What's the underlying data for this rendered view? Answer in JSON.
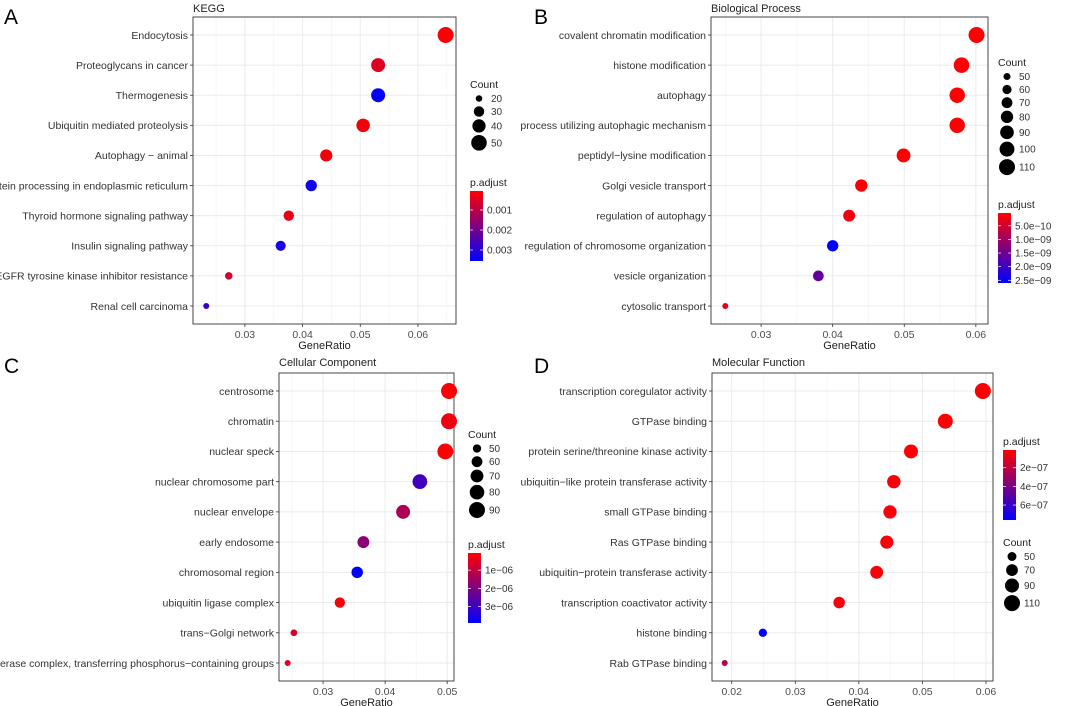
{
  "chart_data": [
    {
      "type": "scatter",
      "panel_letter": "A",
      "title": "KEGG",
      "xlabel": "GeneRatio",
      "ylabel": "",
      "xlim": [
        0.021,
        0.0666
      ],
      "xticks": [
        0.03,
        0.04,
        0.05,
        0.06
      ],
      "xtick_labels": [
        "0.03",
        "0.04",
        "0.05",
        "0.06"
      ],
      "grid": true,
      "categories": [
        "Endocytosis",
        "Proteoglycans in cancer",
        "Thermogenesis",
        "Ubiquitin mediated proteolysis",
        "Autophagy − animal",
        "Protein processing in endoplasmic reticulum",
        "Thyroid hormone signaling pathway",
        "Insulin signaling pathway",
        "EGFR tyrosine kinase inhibitor resistance",
        "Renal cell carcinoma"
      ],
      "gene_ratio": [
        0.0648,
        0.0531,
        0.0531,
        0.0505,
        0.0441,
        0.0415,
        0.0376,
        0.0362,
        0.0272,
        0.0233
      ],
      "count": [
        52,
        43,
        43,
        41,
        36,
        33,
        30,
        29,
        22,
        19
      ],
      "p_adjust": [
        0.0001,
        0.0005,
        0.0035,
        0.0002,
        0.0002,
        0.0033,
        0.0004,
        0.0032,
        0.0007,
        0.0028
      ],
      "size_legend": {
        "title": "Count",
        "values": [
          20,
          30,
          40,
          50
        ],
        "labels": [
          "20",
          "30",
          "40",
          "50"
        ],
        "range": [
          19,
          52
        ]
      },
      "color_legend": {
        "title": "p.adjust",
        "range": [
          5e-05,
          0.00355
        ],
        "ticks": [
          0.001,
          0.002,
          0.003
        ],
        "tick_labels": [
          "0.001",
          "0.002",
          "0.003"
        ],
        "low_color": "#ff0000",
        "high_color": "#0000ff"
      },
      "legend_order": [
        "size",
        "color"
      ],
      "legend_placement": "right"
    },
    {
      "type": "scatter",
      "panel_letter": "B",
      "title": "Biological Process",
      "xlabel": "GeneRatio",
      "ylabel": "",
      "xlim": [
        0.023,
        0.0617
      ],
      "xticks": [
        0.03,
        0.04,
        0.05,
        0.06
      ],
      "xtick_labels": [
        "0.03",
        "0.04",
        "0.05",
        "0.06"
      ],
      "grid": true,
      "categories": [
        "covalent chromatin modification",
        "histone modification",
        "autophagy",
        "process utilizing autophagic mechanism",
        "peptidyl−lysine modification",
        "Golgi vesicle transport",
        "regulation of autophagy",
        "regulation of chromosome organization",
        "vesicle organization",
        "cytosolic transport"
      ],
      "gene_ratio": [
        0.0601,
        0.058,
        0.0574,
        0.0574,
        0.0499,
        0.044,
        0.0423,
        0.04,
        0.038,
        0.025
      ],
      "count": [
        110,
        106,
        105,
        105,
        91,
        80,
        77,
        73,
        69,
        46
      ],
      "p_adjust": [
        5e-11,
        5e-11,
        5e-11,
        5e-11,
        5e-11,
        8e-11,
        2e-10,
        2.6e-09,
        1.6e-09,
        3e-10
      ],
      "size_legend": {
        "title": "Count",
        "values": [
          50,
          60,
          70,
          80,
          90,
          100,
          110
        ],
        "labels": [
          "50",
          "60",
          "70",
          "80",
          "90",
          "100",
          "110"
        ],
        "range": [
          46,
          110
        ]
      },
      "color_legend": {
        "title": "p.adjust",
        "range": [
          3e-11,
          2.6e-09
        ],
        "ticks": [
          5e-10,
          1e-09,
          1.5e-09,
          2e-09,
          2.5e-09
        ],
        "tick_labels": [
          "5.0e−10",
          "1.0e−09",
          "1.5e−09",
          "2.0e−09",
          "2.5e−09"
        ],
        "low_color": "#ff0000",
        "high_color": "#0000ff"
      },
      "legend_order": [
        "size",
        "color"
      ],
      "legend_placement": "right"
    },
    {
      "type": "scatter",
      "panel_letter": "C",
      "title": "Cellular Component",
      "xlabel": "GeneRatio",
      "ylabel": "",
      "xlim": [
        0.0229,
        0.0511
      ],
      "xticks": [
        0.03,
        0.04,
        0.05
      ],
      "xtick_labels": [
        "0.03",
        "0.04",
        "0.05"
      ],
      "grid": true,
      "categories": [
        "centrosome",
        "chromatin",
        "nuclear speck",
        "nuclear chromosome part",
        "nuclear envelope",
        "early endosome",
        "chromosomal region",
        "ubiquitin ligase complex",
        "trans−Golgi network",
        "transferase complex, transferring phosphorus−containing groups"
      ],
      "gene_ratio": [
        0.0503,
        0.0503,
        0.0497,
        0.0456,
        0.0429,
        0.0365,
        0.0355,
        0.0327,
        0.0253,
        0.0243
      ],
      "count": [
        89,
        89,
        88,
        81,
        76,
        65,
        63,
        58,
        45,
        43
      ],
      "p_adjust": [
        1e-07,
        3e-07,
        1e-07,
        2.9e-06,
        1.3e-06,
        1.8e-06,
        3.9e-06,
        2e-07,
        7e-07,
        6e-07
      ],
      "size_legend": {
        "title": "Count",
        "values": [
          50,
          60,
          70,
          80,
          90
        ],
        "labels": [
          "50",
          "60",
          "70",
          "80",
          "90"
        ],
        "range": [
          43,
          89
        ]
      },
      "color_legend": {
        "title": "p.adjust",
        "range": [
          6e-08,
          3.9e-06
        ],
        "ticks": [
          1e-06,
          2e-06,
          3e-06
        ],
        "tick_labels": [
          "1e−06",
          "2e−06",
          "3e−06"
        ],
        "low_color": "#ff0000",
        "high_color": "#0000ff"
      },
      "legend_order": [
        "size",
        "color"
      ],
      "legend_placement": "right"
    },
    {
      "type": "scatter",
      "panel_letter": "D",
      "title": "Molecular Function",
      "xlabel": "GeneRatio",
      "ylabel": "",
      "xlim": [
        0.0169,
        0.0611
      ],
      "xticks": [
        0.02,
        0.03,
        0.04,
        0.05,
        0.06
      ],
      "xtick_labels": [
        "0.02",
        "0.03",
        "0.04",
        "0.05",
        "0.06"
      ],
      "grid": true,
      "categories": [
        "transcription coregulator activity",
        "GTPase binding",
        "protein serine/threonine kinase activity",
        "ubiquitin−like protein transferase activity",
        "small GTPase binding",
        "Ras GTPase binding",
        "ubiquitin−protein transferase activity",
        "transcription coactivator activity",
        "histone binding",
        "Rab GTPase binding"
      ],
      "gene_ratio": [
        0.0595,
        0.0536,
        0.0482,
        0.0455,
        0.0449,
        0.0444,
        0.0428,
        0.0369,
        0.0249,
        0.0189
      ],
      "count": [
        110,
        99,
        89,
        84,
        83,
        82,
        79,
        68,
        46,
        35
      ],
      "p_adjust": [
        2e-08,
        2e-08,
        2e-08,
        3e-08,
        3e-08,
        3e-08,
        3e-08,
        3e-08,
        7.5e-07,
        2.5e-07
      ],
      "size_legend": {
        "title": "Count",
        "values": [
          50,
          70,
          90,
          110
        ],
        "labels": [
          "50",
          "70",
          "90",
          "110"
        ],
        "range": [
          35,
          110
        ]
      },
      "color_legend": {
        "title": "p.adjust",
        "range": [
          1e-08,
          7.6e-07
        ],
        "ticks": [
          2e-07,
          4e-07,
          6e-07
        ],
        "tick_labels": [
          "2e−07",
          "4e−07",
          "6e−07"
        ],
        "low_color": "#ff0000",
        "high_color": "#0000ff"
      },
      "legend_order": [
        "color",
        "size"
      ],
      "legend_placement": "right"
    }
  ]
}
